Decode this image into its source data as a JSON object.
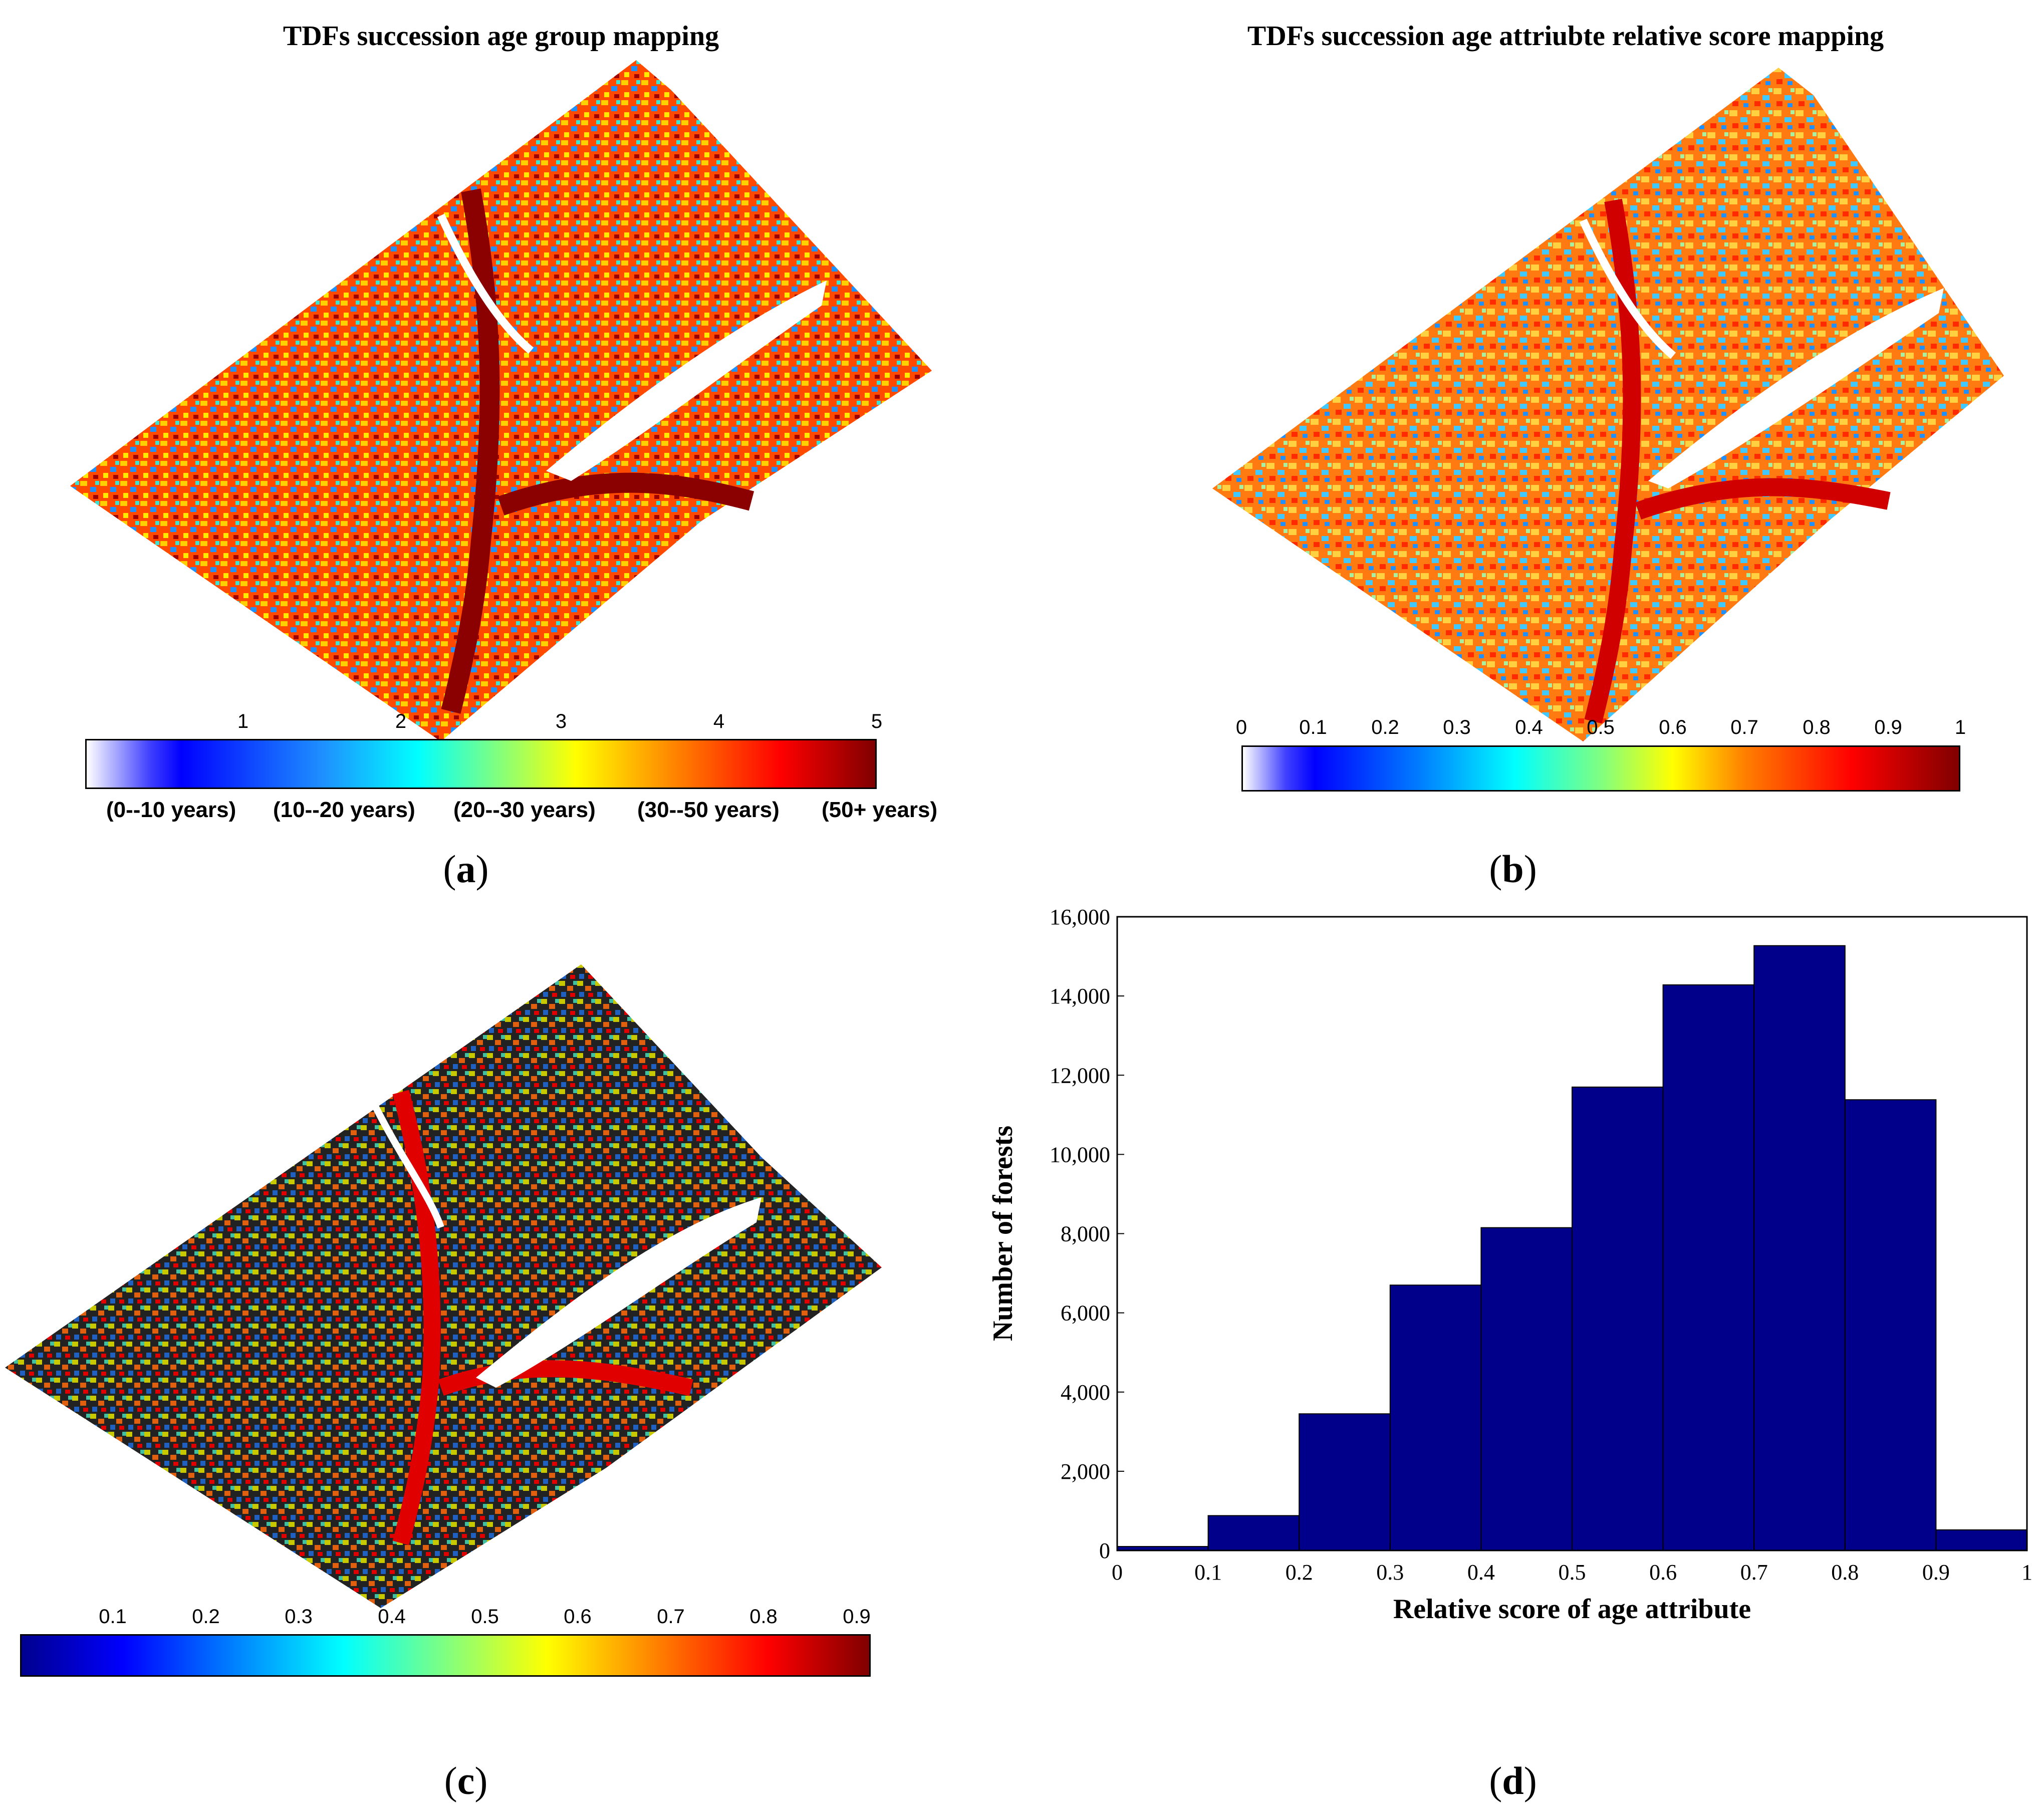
{
  "panel_a": {
    "title": "TDFs succession age group mapping",
    "caption_letter": "a",
    "colorbar_ticks": [
      "1",
      "2",
      "3",
      "4",
      "5"
    ],
    "colorbar_sublabels": [
      "(0--10 years)",
      "(10--20 years)",
      "(20--30 years)",
      "(30--50 years)",
      "(50+ years)"
    ]
  },
  "panel_b": {
    "title": "TDFs succession age attriubte relative score mapping",
    "caption_letter": "b",
    "colorbar_ticks": [
      "0",
      "0.1",
      "0.2",
      "0.3",
      "0.4",
      "0.5",
      "0.6",
      "0.7",
      "0.8",
      "0.9",
      "1"
    ]
  },
  "panel_c": {
    "caption_letter": "c",
    "colorbar_ticks": [
      "0.1",
      "0.2",
      "0.3",
      "0.4",
      "0.5",
      "0.6",
      "0.7",
      "0.8",
      "0.9"
    ]
  },
  "panel_d": {
    "caption_letter": "d"
  },
  "colors": {
    "bar_fill": "#00008b",
    "jet_stops": [
      "#00008f",
      "#0000ff",
      "#0080ff",
      "#00ffff",
      "#80ff80",
      "#ffff00",
      "#ff8000",
      "#ff0000",
      "#800000"
    ]
  },
  "chart_data": {
    "type": "bar",
    "title": "",
    "xlabel": "Relative score of age attribute",
    "ylabel": "Number of forests",
    "bin_edges": [
      0,
      0.1,
      0.2,
      0.3,
      0.4,
      0.5,
      0.6,
      0.7,
      0.8,
      0.9,
      1
    ],
    "values": [
      100,
      880,
      3450,
      6700,
      8150,
      11700,
      14280,
      15270,
      11380,
      520
    ],
    "xlim": [
      0,
      1
    ],
    "ylim": [
      0,
      16000
    ],
    "xticks": [
      "0",
      "0.1",
      "0.2",
      "0.3",
      "0.4",
      "0.5",
      "0.6",
      "0.7",
      "0.8",
      "0.9",
      "1"
    ],
    "yticks": [
      "0",
      "2,000",
      "4,000",
      "6,000",
      "8,000",
      "10,000",
      "12,000",
      "14,000",
      "16,000"
    ],
    "ytick_values": [
      0,
      2000,
      4000,
      6000,
      8000,
      10000,
      12000,
      14000,
      16000
    ],
    "grid": false,
    "legend": "none"
  }
}
